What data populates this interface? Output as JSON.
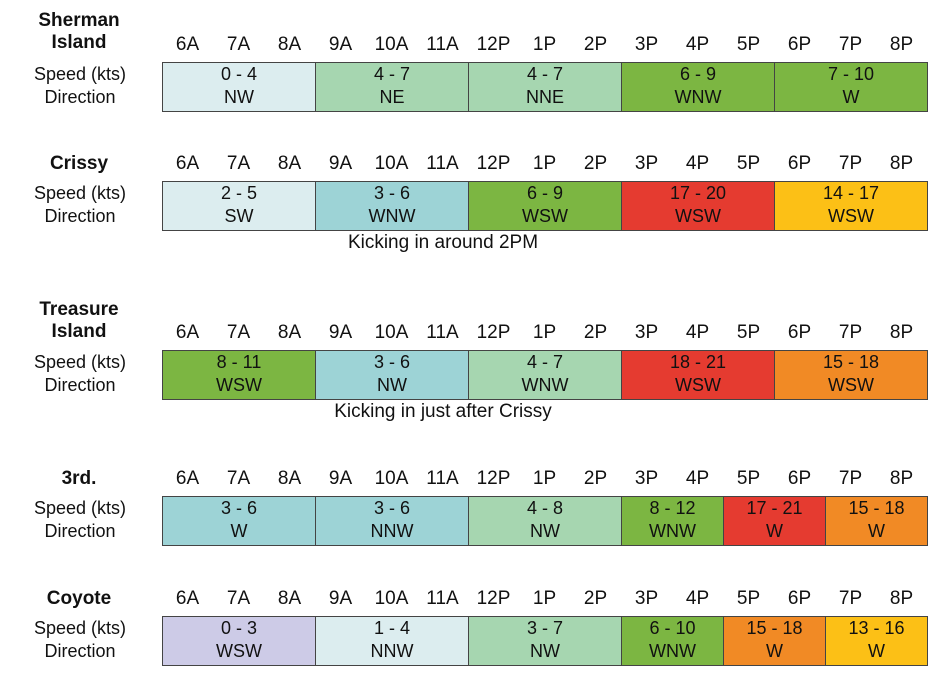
{
  "hours": [
    "6A",
    "7A",
    "8A",
    "9A",
    "10A",
    "11A",
    "12P",
    "1P",
    "2P",
    "3P",
    "4P",
    "5P",
    "6P",
    "7P",
    "8P"
  ],
  "row_labels": {
    "speed": "Speed (kts)",
    "direction": "Direction"
  },
  "colors": {
    "light_blue": "#dcedef",
    "teal_blue": "#9dd3d6",
    "mint": "#a6d6b0",
    "green": "#7cb642",
    "red": "#e53b30",
    "yellow": "#fcc016",
    "orange": "#f18a25",
    "lavender": "#cdcbe7"
  },
  "locations": [
    {
      "name_lines": [
        "Sherman",
        "Island"
      ],
      "note": "",
      "segments": [
        {
          "start": 0,
          "end": 3,
          "speed": "0 - 4",
          "direction": "NW",
          "color": "#dcedef"
        },
        {
          "start": 3,
          "end": 6,
          "speed": "4 - 7",
          "direction": "NE",
          "color": "#a6d6b0"
        },
        {
          "start": 6,
          "end": 9,
          "speed": "4 - 7",
          "direction": "NNE",
          "color": "#a6d6b0"
        },
        {
          "start": 9,
          "end": 12,
          "speed": "6 - 9",
          "direction": "WNW",
          "color": "#7cb642"
        },
        {
          "start": 12,
          "end": 15,
          "speed": "7 - 10",
          "direction": "W",
          "color": "#7cb642"
        }
      ]
    },
    {
      "name_lines": [
        "Crissy"
      ],
      "note": "Kicking in around 2PM",
      "segments": [
        {
          "start": 0,
          "end": 3,
          "speed": "2 - 5",
          "direction": "SW",
          "color": "#dcedef"
        },
        {
          "start": 3,
          "end": 6,
          "speed": "3 - 6",
          "direction": "WNW",
          "color": "#9dd3d6"
        },
        {
          "start": 6,
          "end": 9,
          "speed": "6 - 9",
          "direction": "WSW",
          "color": "#7cb642"
        },
        {
          "start": 9,
          "end": 12,
          "speed": "17 - 20",
          "direction": "WSW",
          "color": "#e53b30"
        },
        {
          "start": 12,
          "end": 15,
          "speed": "14 - 17",
          "direction": "WSW",
          "color": "#fcc016"
        }
      ]
    },
    {
      "name_lines": [
        "Treasure",
        "Island"
      ],
      "note": "Kicking in just after Crissy",
      "segments": [
        {
          "start": 0,
          "end": 3,
          "speed": "8 - 11",
          "direction": "WSW",
          "color": "#7cb642"
        },
        {
          "start": 3,
          "end": 6,
          "speed": "3 - 6",
          "direction": "NW",
          "color": "#9dd3d6"
        },
        {
          "start": 6,
          "end": 9,
          "speed": "4 - 7",
          "direction": "WNW",
          "color": "#a6d6b0"
        },
        {
          "start": 9,
          "end": 12,
          "speed": "18 - 21",
          "direction": "WSW",
          "color": "#e53b30"
        },
        {
          "start": 12,
          "end": 15,
          "speed": "15 - 18",
          "direction": "WSW",
          "color": "#f18a25"
        }
      ]
    },
    {
      "name_lines": [
        "3rd."
      ],
      "note": "",
      "segments": [
        {
          "start": 0,
          "end": 3,
          "speed": "3 - 6",
          "direction": "W",
          "color": "#9dd3d6"
        },
        {
          "start": 3,
          "end": 6,
          "speed": "3 - 6",
          "direction": "NNW",
          "color": "#9dd3d6"
        },
        {
          "start": 6,
          "end": 9,
          "speed": "4 - 8",
          "direction": "NW",
          "color": "#a6d6b0"
        },
        {
          "start": 9,
          "end": 11,
          "speed": "8 - 12",
          "direction": "WNW",
          "color": "#7cb642"
        },
        {
          "start": 11,
          "end": 13,
          "speed": "17 - 21",
          "direction": "W",
          "color": "#e53b30"
        },
        {
          "start": 13,
          "end": 15,
          "speed": "15 - 18",
          "direction": "W",
          "color": "#f18a25"
        }
      ]
    },
    {
      "name_lines": [
        "Coyote"
      ],
      "note": "",
      "segments": [
        {
          "start": 0,
          "end": 3,
          "speed": "0 - 3",
          "direction": "WSW",
          "color": "#cdcbe7"
        },
        {
          "start": 3,
          "end": 6,
          "speed": "1 - 4",
          "direction": "NNW",
          "color": "#dcedef"
        },
        {
          "start": 6,
          "end": 9,
          "speed": "3 - 7",
          "direction": "NW",
          "color": "#a6d6b0"
        },
        {
          "start": 9,
          "end": 11,
          "speed": "6 - 10",
          "direction": "WNW",
          "color": "#7cb642"
        },
        {
          "start": 11,
          "end": 13,
          "speed": "15 - 18",
          "direction": "W",
          "color": "#f18a25"
        },
        {
          "start": 13,
          "end": 15,
          "speed": "13 - 16",
          "direction": "W",
          "color": "#fcc016"
        }
      ]
    }
  ]
}
